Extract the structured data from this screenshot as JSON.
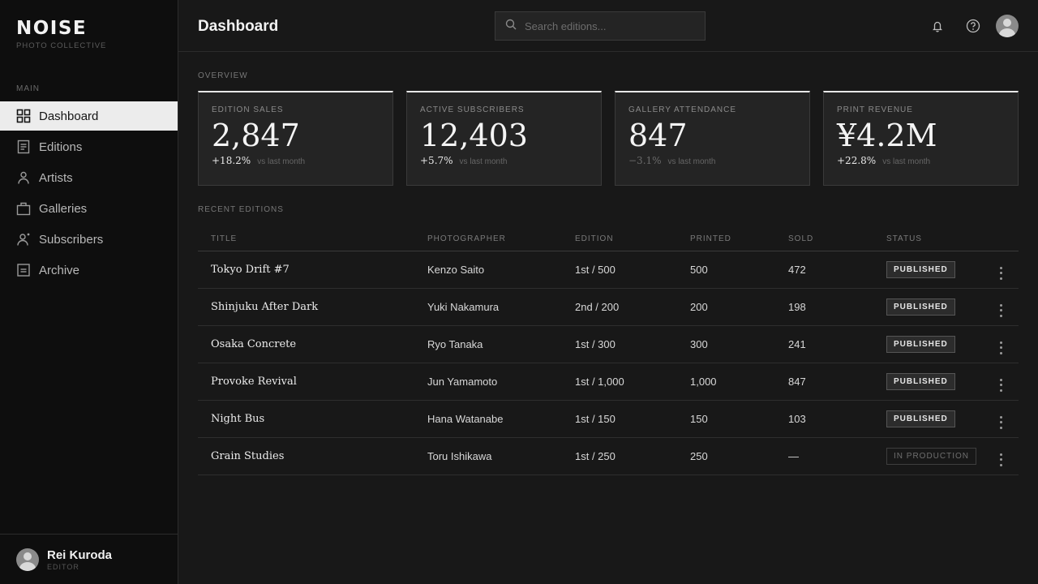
{
  "brand": {
    "name": "NOISE",
    "subtitle": "PHOTO COLLECTIVE"
  },
  "sidebar": {
    "section": "MAIN",
    "items": [
      {
        "label": "Dashboard",
        "icon": "grid-icon",
        "active": true
      },
      {
        "label": "Editions",
        "icon": "document-icon"
      },
      {
        "label": "Artists",
        "icon": "person-icon"
      },
      {
        "label": "Galleries",
        "icon": "gallery-icon"
      },
      {
        "label": "Subscribers",
        "icon": "person-plus-icon"
      },
      {
        "label": "Archive",
        "icon": "archive-icon"
      }
    ],
    "user": {
      "name": "Rei Kuroda",
      "role": "EDITOR"
    }
  },
  "header": {
    "title": "Dashboard",
    "search_placeholder": "Search editions...",
    "icons": [
      "bell-icon",
      "help-icon",
      "avatar"
    ]
  },
  "overview": {
    "label": "OVERVIEW",
    "cards": [
      {
        "label": "EDITION SALES",
        "value": "2,847",
        "delta": "+18.2%",
        "note": "vs last month",
        "negative": false
      },
      {
        "label": "ACTIVE SUBSCRIBERS",
        "value": "12,403",
        "delta": "+5.7%",
        "note": "vs last month",
        "negative": false
      },
      {
        "label": "GALLERY ATTENDANCE",
        "value": "847",
        "delta": "−3.1%",
        "note": "vs last month",
        "negative": true
      },
      {
        "label": "PRINT REVENUE",
        "value": "¥4.2M",
        "delta": "+22.8%",
        "note": "vs last month",
        "negative": false
      }
    ]
  },
  "recent": {
    "label": "RECENT EDITIONS",
    "columns": [
      "TITLE",
      "PHOTOGRAPHER",
      "EDITION",
      "PRINTED",
      "SOLD",
      "STATUS"
    ],
    "rows": [
      {
        "title": "Tokyo Drift #7",
        "photographer": "Kenzo Saito",
        "edition": "1st / 500",
        "printed": "500",
        "sold": "472",
        "status": "PUBLISHED"
      },
      {
        "title": "Shinjuku After Dark",
        "photographer": "Yuki Nakamura",
        "edition": "2nd / 200",
        "printed": "200",
        "sold": "198",
        "status": "PUBLISHED"
      },
      {
        "title": "Osaka Concrete",
        "photographer": "Ryo Tanaka",
        "edition": "1st / 300",
        "printed": "300",
        "sold": "241",
        "status": "PUBLISHED"
      },
      {
        "title": "Provoke Revival",
        "photographer": "Jun Yamamoto",
        "edition": "1st / 1,000",
        "printed": "1,000",
        "sold": "847",
        "status": "PUBLISHED"
      },
      {
        "title": "Night Bus",
        "photographer": "Hana Watanabe",
        "edition": "1st / 150",
        "printed": "150",
        "sold": "103",
        "status": "PUBLISHED"
      },
      {
        "title": "Grain Studies",
        "photographer": "Toru Ishikawa",
        "edition": "1st / 250",
        "printed": "250",
        "sold": "—",
        "status": "IN PRODUCTION"
      }
    ]
  }
}
